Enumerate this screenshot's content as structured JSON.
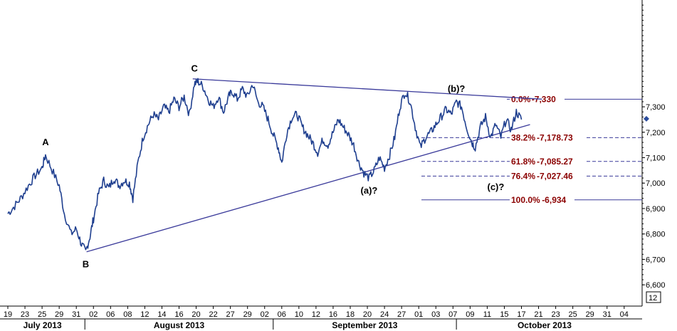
{
  "chart_data": {
    "type": "line",
    "title": "",
    "xlabel": "",
    "ylabel": "",
    "ylim": [
      6550,
      7720
    ],
    "price_axis_ticks": [
      "6,600",
      "6,700",
      "6,800",
      "6,900",
      "7,000",
      "7,100",
      "7,200",
      "7,300"
    ],
    "day_ticks": [
      "19",
      "23",
      "25",
      "29",
      "31",
      "02",
      "06",
      "08",
      "12",
      "14",
      "16",
      "20",
      "22",
      "27",
      "29",
      "02",
      "06",
      "10",
      "12",
      "16",
      "18",
      "20",
      "24",
      "27",
      "01",
      "03",
      "07",
      "09",
      "11",
      "15",
      "17",
      "21",
      "23",
      "25",
      "29",
      "31",
      "04"
    ],
    "months": [
      {
        "label": "July 2013",
        "start": 0,
        "end": 5
      },
      {
        "label": "August 2013",
        "start": 5,
        "end": 16
      },
      {
        "label": "September 2013",
        "start": 16,
        "end": 26.7
      },
      {
        "label": "October 2013",
        "start": 26.7,
        "end": 37
      }
    ],
    "period_box": "12",
    "series": [
      {
        "color": "#1f3f8f",
        "points": [
          [
            0.0,
            6880
          ],
          [
            0.4,
            6910
          ],
          [
            0.8,
            6945
          ],
          [
            1.2,
            6990
          ],
          [
            1.6,
            7030
          ],
          [
            2.0,
            7060
          ],
          [
            2.2,
            7110
          ],
          [
            2.6,
            7050
          ],
          [
            3.0,
            6990
          ],
          [
            3.3,
            6880
          ],
          [
            3.7,
            6800
          ],
          [
            4.0,
            6820
          ],
          [
            4.3,
            6760
          ],
          [
            4.55,
            6730
          ],
          [
            4.8,
            6790
          ],
          [
            5.0,
            6860
          ],
          [
            5.3,
            6960
          ],
          [
            5.6,
            7010
          ],
          [
            5.9,
            6980
          ],
          [
            6.2,
            7020
          ],
          [
            6.5,
            6990
          ],
          [
            6.8,
            7010
          ],
          [
            7.1,
            7000
          ],
          [
            7.3,
            6940
          ],
          [
            7.6,
            7080
          ],
          [
            7.9,
            7180
          ],
          [
            8.2,
            7230
          ],
          [
            8.5,
            7270
          ],
          [
            8.8,
            7250
          ],
          [
            9.1,
            7300
          ],
          [
            9.4,
            7280
          ],
          [
            9.7,
            7330
          ],
          [
            10.0,
            7300
          ],
          [
            10.3,
            7340
          ],
          [
            10.6,
            7270
          ],
          [
            10.9,
            7390
          ],
          [
            11.1,
            7400
          ],
          [
            11.4,
            7380
          ],
          [
            11.7,
            7330
          ],
          [
            12.0,
            7300
          ],
          [
            12.3,
            7340
          ],
          [
            12.6,
            7280
          ],
          [
            12.9,
            7340
          ],
          [
            13.1,
            7360
          ],
          [
            13.4,
            7330
          ],
          [
            13.7,
            7370
          ],
          [
            14.0,
            7340
          ],
          [
            14.3,
            7390
          ],
          [
            14.6,
            7320
          ],
          [
            14.9,
            7300
          ],
          [
            15.2,
            7250
          ],
          [
            15.5,
            7190
          ],
          [
            15.8,
            7140
          ],
          [
            16.0,
            7080
          ],
          [
            16.3,
            7200
          ],
          [
            16.6,
            7260
          ],
          [
            16.9,
            7270
          ],
          [
            17.2,
            7220
          ],
          [
            17.5,
            7190
          ],
          [
            17.8,
            7160
          ],
          [
            18.1,
            7120
          ],
          [
            18.4,
            7170
          ],
          [
            18.7,
            7150
          ],
          [
            19.0,
            7200
          ],
          [
            19.3,
            7250
          ],
          [
            19.6,
            7220
          ],
          [
            19.9,
            7190
          ],
          [
            20.2,
            7150
          ],
          [
            20.5,
            7080
          ],
          [
            20.8,
            7040
          ],
          [
            21.1,
            7020
          ],
          [
            21.4,
            7050
          ],
          [
            21.7,
            7100
          ],
          [
            22.0,
            7060
          ],
          [
            22.3,
            7110
          ],
          [
            22.6,
            7180
          ],
          [
            22.9,
            7300
          ],
          [
            23.2,
            7360
          ],
          [
            23.5,
            7320
          ],
          [
            23.8,
            7220
          ],
          [
            24.1,
            7140
          ],
          [
            24.4,
            7180
          ],
          [
            24.7,
            7200
          ],
          [
            25.0,
            7230
          ],
          [
            25.3,
            7260
          ],
          [
            25.6,
            7290
          ],
          [
            25.9,
            7270
          ],
          [
            26.2,
            7320
          ],
          [
            26.5,
            7300
          ],
          [
            26.8,
            7220
          ],
          [
            27.1,
            7160
          ],
          [
            27.3,
            7140
          ],
          [
            27.6,
            7220
          ],
          [
            27.9,
            7260
          ],
          [
            28.2,
            7180
          ],
          [
            28.5,
            7230
          ],
          [
            28.8,
            7180
          ],
          [
            29.1,
            7250
          ],
          [
            29.4,
            7210
          ],
          [
            29.7,
            7280
          ],
          [
            30.0,
            7250
          ]
        ]
      }
    ],
    "trendlines": [
      {
        "from": [
          4.6,
          6730
        ],
        "to": [
          30.5,
          7230
        ]
      },
      {
        "from": [
          10.8,
          7410
        ],
        "to": [
          31.2,
          7330
        ]
      }
    ],
    "fib_levels": [
      {
        "label": "0.0%",
        "value_label": "7,330",
        "value": 7330,
        "style": "solid",
        "color": "#3a3a9a",
        "text_color": "#8b0000"
      },
      {
        "label": "38.2%",
        "value_label": "7,178.73",
        "value": 7178.73,
        "style": "dashed",
        "color": "#3a3a9a",
        "text_color": "#8b0000"
      },
      {
        "label": "61.8%",
        "value_label": "7,085.27",
        "value": 7085.27,
        "style": "dashed",
        "color": "#3a3a9a",
        "text_color": "#8b0000"
      },
      {
        "label": "76.4%",
        "value_label": "7,027.46",
        "value": 7027.46,
        "style": "dashed",
        "color": "#3a3a9a",
        "text_color": "#8b0000"
      },
      {
        "label": "100.0%",
        "value_label": "6,934",
        "value": 6934,
        "style": "solid",
        "color": "#3a3a9a",
        "text_color": "#8b0000"
      }
    ],
    "annotations": [
      {
        "text": "A",
        "x": 2.2,
        "y": 7110,
        "pos": "above"
      },
      {
        "text": "B",
        "x": 4.55,
        "y": 6730,
        "pos": "below"
      },
      {
        "text": "C",
        "x": 10.9,
        "y": 7400,
        "pos": "above"
      },
      {
        "text": "(a)?",
        "x": 21.1,
        "y": 7020,
        "pos": "below"
      },
      {
        "text": "(b)?",
        "x": 26.2,
        "y": 7320,
        "pos": "above"
      },
      {
        "text": "(c)?",
        "x": 28.5,
        "y": 6934,
        "pos": "above"
      }
    ],
    "grid": false,
    "legend": "none"
  }
}
